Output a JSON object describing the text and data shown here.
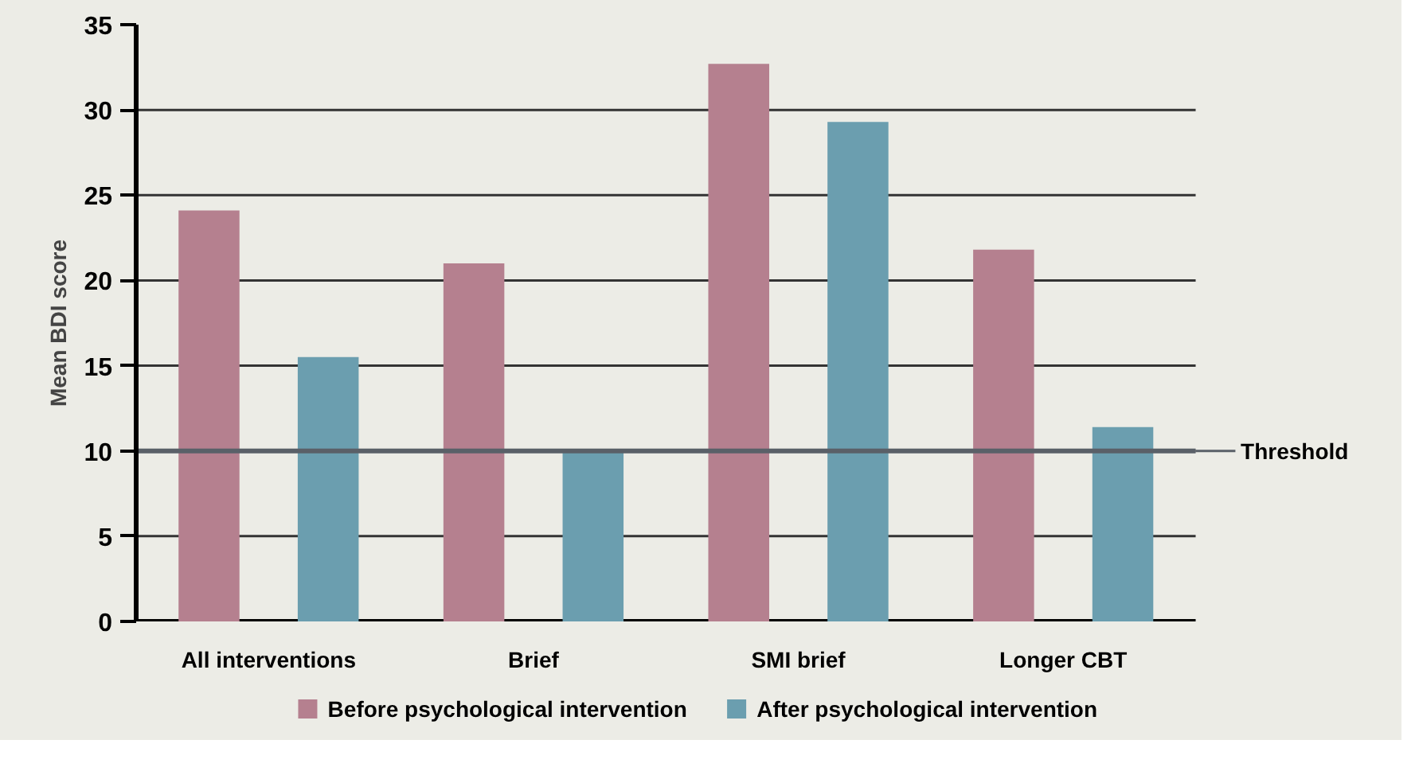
{
  "chart_data": {
    "type": "bar",
    "ylabel": "Mean BDI score",
    "categories": [
      "All interventions",
      "Brief",
      "SMI brief",
      "Longer CBT"
    ],
    "series": [
      {
        "name": "Before psychological intervention",
        "color": "#b5808f",
        "values": [
          24.1,
          21.0,
          32.7,
          21.8
        ]
      },
      {
        "name": "After psychological intervention",
        "color": "#6b9eaf",
        "values": [
          15.5,
          10.1,
          29.3,
          11.4
        ]
      }
    ],
    "ylim": [
      0,
      35
    ],
    "yticks": [
      0,
      5,
      10,
      15,
      20,
      25,
      30,
      35
    ],
    "grid": "y",
    "legend": "bottom",
    "ref_lines": [
      {
        "axis": "y",
        "value": 10,
        "label": "Threshold",
        "color": "#5a6068"
      }
    ]
  }
}
